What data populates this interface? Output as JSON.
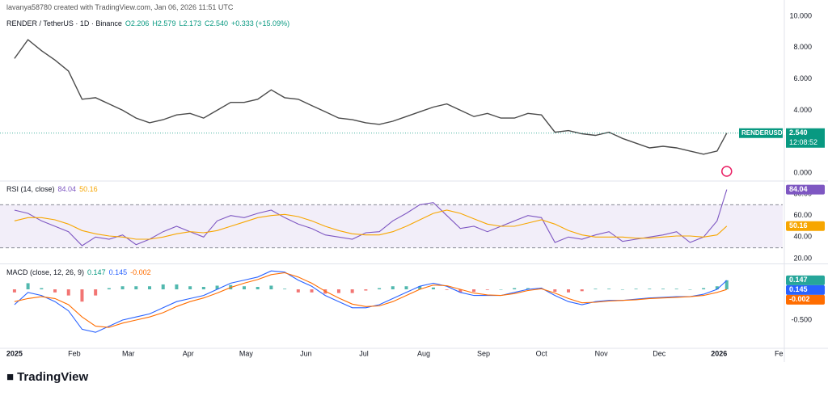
{
  "credit": "lavanya58780 created with TradingView.com, Jan 06, 2026 11:51 UTC",
  "brand": "TradingView",
  "header": {
    "symbol": "RENDER / TetherUS · 1D · Binance",
    "open": "O2.206",
    "high": "H2.579",
    "low": "L2.173",
    "close": "C2.540",
    "change": "+0.333 (+15.09%)"
  },
  "price_label": {
    "symbol": "RENDERUSDT",
    "price": "2.540",
    "countdown": "12:08:52"
  },
  "chart_data": [
    {
      "type": "line",
      "xlim": [
        -7.5,
        398
      ],
      "ylim": [
        -0.41,
        10.41
      ],
      "yticks": [
        {
          "value": 0,
          "label": "0.000"
        },
        {
          "value": 4,
          "label": "4.000"
        },
        {
          "value": 6,
          "label": "6.000"
        },
        {
          "value": 8,
          "label": "8.000"
        },
        {
          "value": 10,
          "label": "10.000"
        }
      ],
      "x": [
        0,
        7,
        14,
        21,
        28,
        35,
        42,
        49,
        56,
        63,
        70,
        77,
        84,
        91,
        98,
        105,
        112,
        119,
        126,
        133,
        140,
        147,
        154,
        161,
        168,
        175,
        182,
        189,
        196,
        203,
        210,
        217,
        224,
        231,
        238,
        245,
        252,
        259,
        266,
        273,
        280,
        287,
        294,
        301,
        308,
        315,
        322,
        329,
        336,
        343,
        350,
        357,
        364,
        369
      ],
      "series": [
        {
          "color": "#4a4a4a",
          "values": [
            7.3,
            8.5,
            7.8,
            7.2,
            6.5,
            4.7,
            4.8,
            4.4,
            4.0,
            3.5,
            3.2,
            3.4,
            3.7,
            3.8,
            3.5,
            4.0,
            4.5,
            4.5,
            4.7,
            5.3,
            4.8,
            4.7,
            4.3,
            3.9,
            3.5,
            3.4,
            3.2,
            3.1,
            3.3,
            3.6,
            3.9,
            4.2,
            4.4,
            4.0,
            3.6,
            3.8,
            3.5,
            3.5,
            3.8,
            3.7,
            2.6,
            2.7,
            2.5,
            2.4,
            2.6,
            2.2,
            1.9,
            1.6,
            1.7,
            1.6,
            1.4,
            1.2,
            1.4,
            2.54
          ]
        }
      ]
    },
    {
      "type": "line",
      "title": "RSI (14, close)",
      "xlim": [
        -7.5,
        398
      ],
      "ylim": [
        16.25,
        90.5
      ],
      "yticks": [
        {
          "value": 20,
          "label": "20.00"
        },
        {
          "value": 40,
          "label": "40.00"
        },
        {
          "value": 60,
          "label": "60.00"
        },
        {
          "value": 80,
          "label": "80.00"
        }
      ],
      "bands": [
        30,
        70
      ],
      "band_color": "#7e57c2",
      "x": [
        0,
        7,
        14,
        21,
        28,
        35,
        42,
        49,
        56,
        63,
        70,
        77,
        84,
        91,
        98,
        105,
        112,
        119,
        126,
        133,
        140,
        147,
        154,
        161,
        168,
        175,
        182,
        189,
        196,
        203,
        210,
        217,
        224,
        231,
        238,
        245,
        252,
        259,
        266,
        273,
        280,
        287,
        294,
        301,
        308,
        315,
        322,
        329,
        336,
        343,
        350,
        357,
        364,
        369
      ],
      "series": [
        {
          "color": "#7e57c2",
          "values": [
            65,
            62,
            55,
            50,
            45,
            32,
            40,
            38,
            42,
            33,
            38,
            45,
            50,
            45,
            40,
            55,
            60,
            58,
            62,
            65,
            58,
            52,
            48,
            42,
            40,
            38,
            44,
            45,
            55,
            62,
            70,
            72,
            60,
            48,
            50,
            45,
            50,
            55,
            60,
            58,
            35,
            40,
            38,
            42,
            45,
            36,
            38,
            40,
            42,
            45,
            35,
            40,
            55,
            84.04
          ]
        },
        {
          "color": "#f7a600",
          "values": [
            55,
            58,
            58,
            56,
            52,
            46,
            43,
            41,
            40,
            38,
            38,
            40,
            43,
            45,
            44,
            46,
            50,
            54,
            58,
            60,
            61,
            59,
            55,
            50,
            46,
            43,
            42,
            42,
            45,
            50,
            56,
            62,
            65,
            62,
            57,
            52,
            50,
            50,
            53,
            56,
            52,
            46,
            42,
            40,
            40,
            40,
            39,
            39,
            40,
            41,
            41,
            40,
            42,
            50.16
          ]
        }
      ]
    },
    {
      "type": "line",
      "title": "MACD (close, 12, 26, 9)",
      "xlim": [
        -7.5,
        398
      ],
      "ylim": [
        -0.947,
        0.395
      ],
      "yticks": [
        {
          "value": -0.5,
          "label": "-0.500"
        }
      ],
      "xticks": [
        {
          "value": 0,
          "label": "2025"
        },
        {
          "value": 31,
          "label": "Feb"
        },
        {
          "value": 59,
          "label": "Mar"
        },
        {
          "value": 90,
          "label": "Apr"
        },
        {
          "value": 120,
          "label": "May"
        },
        {
          "value": 151,
          "label": "Jun"
        },
        {
          "value": 181,
          "label": "Jul"
        },
        {
          "value": 212,
          "label": "Aug"
        },
        {
          "value": 243,
          "label": "Sep"
        },
        {
          "value": 273,
          "label": "Oct"
        },
        {
          "value": 304,
          "label": "Nov"
        },
        {
          "value": 334,
          "label": "Dec"
        },
        {
          "value": 365,
          "label": "2026"
        },
        {
          "value": 396,
          "label": "Fe"
        }
      ],
      "x": [
        0,
        7,
        14,
        21,
        28,
        35,
        42,
        49,
        56,
        63,
        70,
        77,
        84,
        91,
        98,
        105,
        112,
        119,
        126,
        133,
        140,
        147,
        154,
        161,
        168,
        175,
        182,
        189,
        196,
        203,
        210,
        217,
        224,
        231,
        238,
        245,
        252,
        259,
        266,
        273,
        280,
        287,
        294,
        301,
        308,
        315,
        322,
        329,
        336,
        343,
        350,
        357,
        364,
        369
      ],
      "series": [
        {
          "style": "histogram",
          "color": "#26a69a",
          "neg_color": "#ef5350",
          "values": [
            -0.05,
            0.1,
            0.02,
            -0.05,
            -0.1,
            -0.2,
            -0.1,
            0.02,
            0.05,
            0.05,
            0.05,
            0.08,
            0.08,
            0.05,
            0.04,
            0.06,
            0.07,
            0.05,
            0.04,
            0.06,
            0.01,
            -0.05,
            -0.05,
            -0.07,
            -0.06,
            -0.06,
            -0.02,
            0.02,
            0.05,
            0.05,
            0.05,
            0.03,
            -0.01,
            -0.05,
            -0.04,
            -0.01,
            0,
            0.02,
            0.02,
            0.01,
            -0.04,
            -0.05,
            -0.03,
            0.01,
            0.01,
            0,
            0.01,
            0.01,
            0.01,
            0.01,
            0,
            0.02,
            0.05,
            0.147
          ]
        },
        {
          "color": "#2962ff",
          "values": [
            -0.25,
            -0.05,
            -0.1,
            -0.2,
            -0.35,
            -0.65,
            -0.7,
            -0.6,
            -0.5,
            -0.45,
            -0.4,
            -0.3,
            -0.2,
            -0.15,
            -0.1,
            0,
            0.1,
            0.15,
            0.2,
            0.3,
            0.28,
            0.15,
            0.05,
            -0.1,
            -0.2,
            -0.3,
            -0.3,
            -0.25,
            -0.15,
            -0.05,
            0.05,
            0.1,
            0.05,
            -0.05,
            -0.1,
            -0.1,
            -0.1,
            -0.05,
            0,
            0.02,
            -0.1,
            -0.2,
            -0.25,
            -0.2,
            -0.18,
            -0.18,
            -0.16,
            -0.14,
            -0.13,
            -0.12,
            -0.12,
            -0.08,
            0,
            0.145
          ]
        },
        {
          "color": "#ff6d00",
          "values": [
            -0.2,
            -0.15,
            -0.12,
            -0.15,
            -0.25,
            -0.45,
            -0.6,
            -0.62,
            -0.55,
            -0.5,
            -0.45,
            -0.38,
            -0.28,
            -0.2,
            -0.14,
            -0.06,
            0.03,
            0.1,
            0.16,
            0.24,
            0.27,
            0.2,
            0.1,
            -0.03,
            -0.14,
            -0.24,
            -0.28,
            -0.27,
            -0.2,
            -0.1,
            0,
            0.07,
            0.06,
            0,
            -0.06,
            -0.09,
            -0.1,
            -0.07,
            -0.02,
            0.01,
            -0.06,
            -0.15,
            -0.22,
            -0.21,
            -0.19,
            -0.18,
            -0.17,
            -0.15,
            -0.14,
            -0.13,
            -0.12,
            -0.1,
            -0.05,
            -0.002
          ]
        }
      ]
    }
  ]
}
